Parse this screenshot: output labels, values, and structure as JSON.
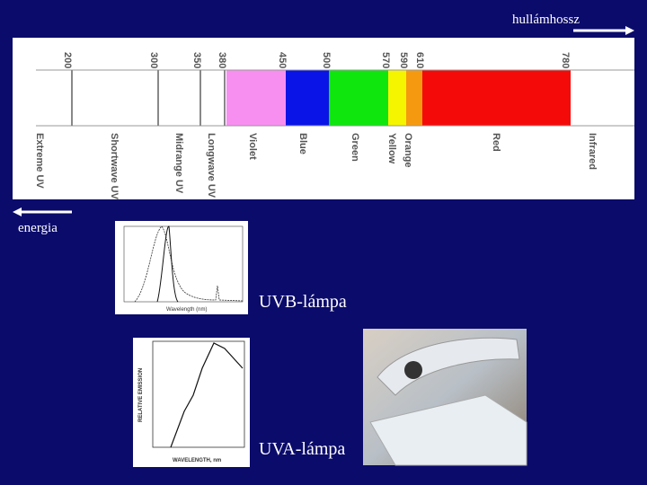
{
  "header": {
    "wavelength_label": "hullámhossz",
    "energy_label": "energia"
  },
  "spectrum": {
    "wavelengths": [
      "200",
      "300",
      "350",
      "380",
      "450",
      "500",
      "570",
      "590",
      "610",
      "780"
    ],
    "bands": [
      "Extreme UV",
      "Shortwave UV",
      "Midrange UV",
      "Longwave UV",
      "Violet",
      "Blue",
      "Green",
      "Yellow",
      "Orange",
      "Red",
      "Infrared"
    ]
  },
  "lamps": [
    {
      "label": "UVB-lámpa",
      "x_axis": "Wavelength (nm)"
    },
    {
      "label": "UVA-lámpa",
      "x_axis": "WAVELENGTH, nm",
      "y_axis": "RELATIVE EMISSION"
    }
  ]
}
